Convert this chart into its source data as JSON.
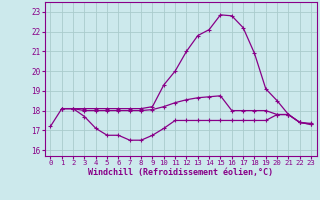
{
  "xlabel": "Windchill (Refroidissement éolien,°C)",
  "bg_color": "#cce9ec",
  "grid_color": "#aacccc",
  "line_color": "#880088",
  "ylim": [
    15.7,
    23.5
  ],
  "xlim": [
    -0.5,
    23.5
  ],
  "yticks": [
    16,
    17,
    18,
    19,
    20,
    21,
    22,
    23
  ],
  "xticks": [
    0,
    1,
    2,
    3,
    4,
    5,
    6,
    7,
    8,
    9,
    10,
    11,
    12,
    13,
    14,
    15,
    16,
    17,
    18,
    19,
    20,
    21,
    22,
    23
  ],
  "line1_x": [
    0,
    1,
    2,
    3,
    4,
    5,
    6,
    7,
    8,
    9,
    10,
    11,
    12,
    13,
    14,
    15,
    16,
    17,
    18,
    19,
    20,
    21,
    22,
    23
  ],
  "line1_y": [
    17.2,
    18.1,
    18.1,
    18.1,
    18.1,
    18.1,
    18.1,
    18.1,
    18.1,
    18.2,
    19.3,
    20.0,
    21.0,
    21.8,
    22.1,
    22.85,
    22.8,
    22.2,
    20.9,
    19.1,
    18.5,
    17.8,
    17.4,
    17.3
  ],
  "line2_x": [
    1,
    2,
    3,
    4,
    5,
    6,
    7,
    8,
    9,
    10,
    11,
    12,
    13,
    14,
    15,
    16,
    17,
    18,
    19,
    20,
    21,
    22,
    23
  ],
  "line2_y": [
    18.1,
    18.1,
    18.0,
    18.0,
    18.0,
    18.0,
    18.0,
    18.0,
    18.05,
    18.2,
    18.4,
    18.55,
    18.65,
    18.7,
    18.75,
    18.0,
    18.0,
    18.0,
    18.0,
    17.8,
    17.8,
    17.4,
    17.35
  ],
  "line3_x": [
    1,
    2,
    3,
    4,
    5,
    6,
    7,
    8,
    9,
    10,
    11,
    12,
    13,
    14,
    15,
    16,
    17,
    18,
    19,
    20,
    21,
    22,
    23
  ],
  "line3_y": [
    18.1,
    18.1,
    17.7,
    17.1,
    16.75,
    16.75,
    16.5,
    16.5,
    16.75,
    17.1,
    17.5,
    17.5,
    17.5,
    17.5,
    17.5,
    17.5,
    17.5,
    17.5,
    17.5,
    17.8,
    17.8,
    17.4,
    17.3
  ]
}
